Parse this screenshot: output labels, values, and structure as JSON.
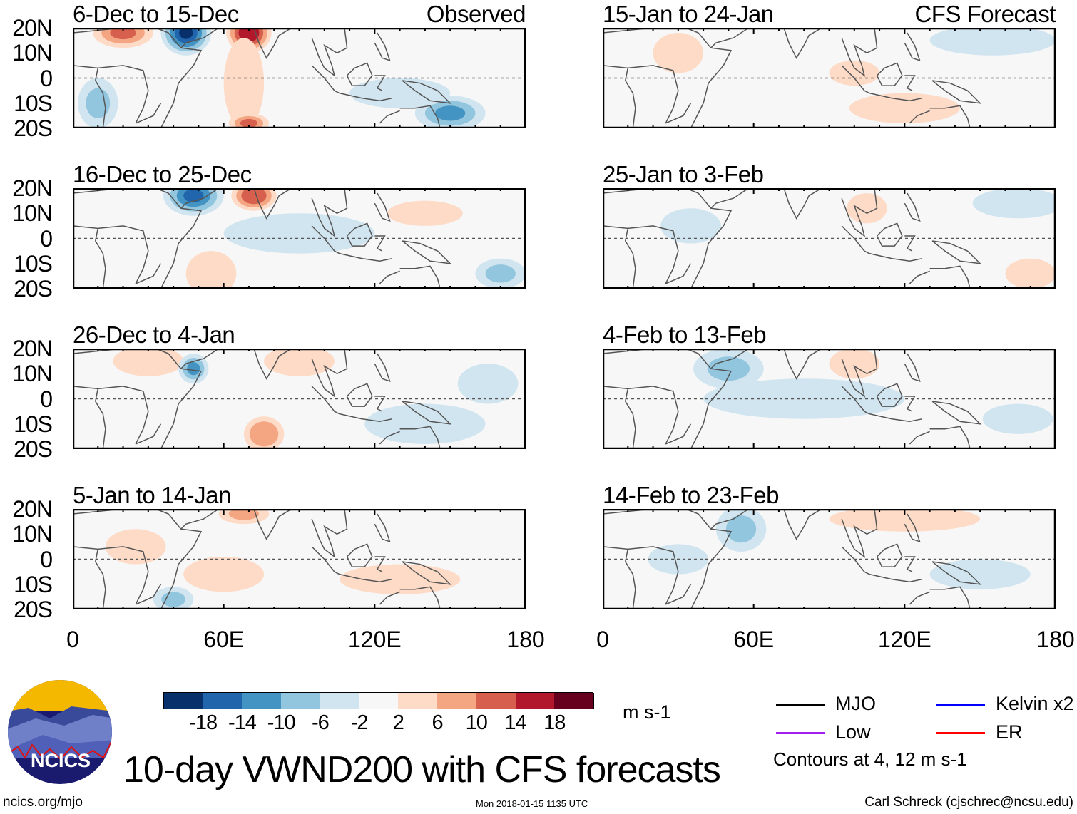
{
  "figure": {
    "title": "10-day VWND200 with CFS forecasts",
    "url": "ncics.org/mjo",
    "timestamp": "Mon 2018-01-15 1135 UTC",
    "author": "Carl Schreck (cjschrec@ncsu.edu)",
    "logo_text": "NCICS",
    "units": "m s-1",
    "contour_note": "Contours at 4, 12 m s-1"
  },
  "columns": [
    {
      "label": "Observed",
      "panels": [
        {
          "title": "6-Dec to 15-Dec",
          "features": [
            [
              45,
              18,
              10,
              9,
              -18
            ],
            [
              70,
              18,
              9,
              8,
              18
            ],
            [
              20,
              18,
              12,
              6,
              12
            ],
            [
              68,
              -2,
              8,
              18,
              6
            ],
            [
              70,
              -18,
              8,
              4,
              12
            ],
            [
              150,
              -14,
              14,
              7,
              -10
            ],
            [
              130,
              -6,
              20,
              6,
              -4
            ],
            [
              10,
              -10,
              8,
              10,
              -6
            ]
          ]
        },
        {
          "title": "16-Dec to 25-Dec",
          "features": [
            [
              48,
              17,
              12,
              8,
              -14
            ],
            [
              72,
              17,
              9,
              6,
              14
            ],
            [
              55,
              -14,
              10,
              9,
              6
            ],
            [
              170,
              -14,
              10,
              6,
              -8
            ],
            [
              90,
              2,
              30,
              8,
              -3
            ],
            [
              140,
              10,
              15,
              5,
              3
            ]
          ]
        },
        {
          "title": "26-Dec to 4-Jan",
          "features": [
            [
              30,
              15,
              14,
              6,
              6
            ],
            [
              48,
              12,
              6,
              6,
              -10
            ],
            [
              90,
              15,
              14,
              6,
              6
            ],
            [
              76,
              -14,
              8,
              7,
              10
            ],
            [
              140,
              -10,
              24,
              8,
              -4
            ],
            [
              165,
              6,
              12,
              8,
              -4
            ]
          ]
        },
        {
          "title": "5-Jan to 14-Jan",
          "features": [
            [
              68,
              18,
              10,
              4,
              8
            ],
            [
              60,
              -6,
              16,
              7,
              6
            ],
            [
              130,
              -8,
              24,
              6,
              4
            ],
            [
              25,
              5,
              12,
              7,
              4
            ],
            [
              40,
              -16,
              8,
              5,
              -6
            ]
          ]
        }
      ]
    },
    {
      "label": "CFS Forecast",
      "panels": [
        {
          "title": "15-Jan to 24-Jan",
          "features": [
            [
              155,
              15,
              25,
              6,
              -4
            ],
            [
              120,
              -12,
              22,
              6,
              3
            ],
            [
              100,
              2,
              10,
              5,
              3
            ],
            [
              30,
              10,
              10,
              8,
              3
            ]
          ]
        },
        {
          "title": "25-Jan to 3-Feb",
          "features": [
            [
              35,
              5,
              12,
              7,
              -4
            ],
            [
              165,
              14,
              18,
              6,
              -3
            ],
            [
              170,
              -14,
              10,
              6,
              4
            ],
            [
              105,
              12,
              8,
              6,
              3
            ]
          ]
        },
        {
          "title": "4-Feb to 13-Feb",
          "features": [
            [
              50,
              12,
              14,
              8,
              -6
            ],
            [
              80,
              0,
              40,
              8,
              -3
            ],
            [
              100,
              14,
              10,
              6,
              3
            ],
            [
              165,
              -8,
              14,
              6,
              -3
            ]
          ]
        },
        {
          "title": "14-Feb to 23-Feb",
          "features": [
            [
              55,
              12,
              10,
              9,
              -6
            ],
            [
              120,
              16,
              30,
              5,
              3
            ],
            [
              150,
              -6,
              20,
              6,
              -3
            ],
            [
              30,
              0,
              12,
              6,
              -3
            ]
          ]
        }
      ]
    }
  ],
  "y_ticks": [
    "20N",
    "10N",
    "0",
    "10S",
    "20S"
  ],
  "x_ticks": [
    "0",
    "60E",
    "120E",
    "180"
  ],
  "colorbar": {
    "colors": [
      "#08306b",
      "#2166ac",
      "#4393c3",
      "#92c5de",
      "#d1e5f0",
      "#f7f7f7",
      "#fddbc7",
      "#f4a582",
      "#d6604d",
      "#b2182b",
      "#67001f"
    ],
    "labels": [
      "-18",
      "-14",
      "-10",
      "-6",
      "-2",
      "2",
      "6",
      "10",
      "14",
      "18"
    ]
  },
  "legend": [
    {
      "label": "MJO",
      "color": "#000000"
    },
    {
      "label": "Kelvin x2",
      "color": "#0000ff"
    },
    {
      "label": "Low",
      "color": "#a020f0"
    },
    {
      "label": "ER",
      "color": "#ff0000"
    }
  ]
}
